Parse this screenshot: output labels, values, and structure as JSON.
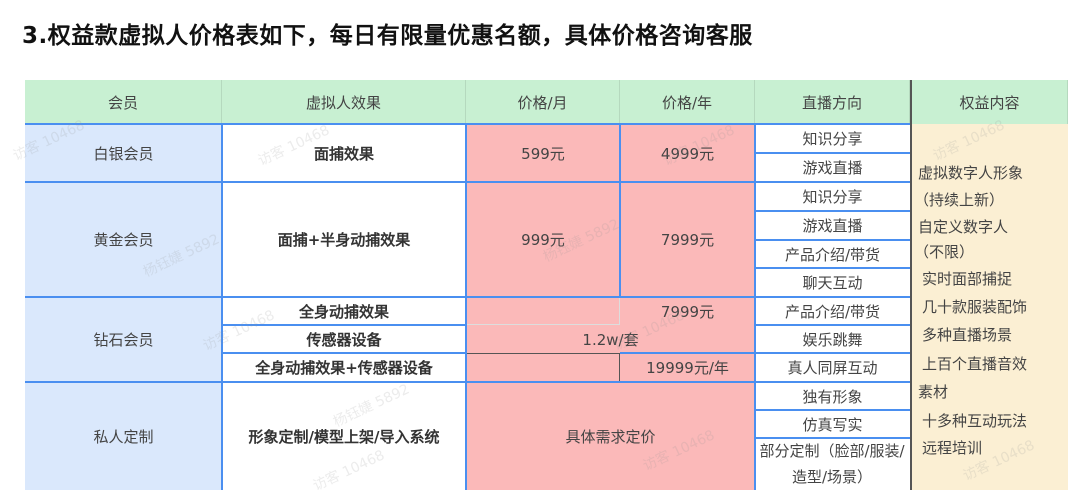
{
  "title": "3.权益款虚拟人价格表如下，每日有限量优惠名额，具体价格咨询客服",
  "headers": [
    "会员",
    "虚拟人效果",
    "价格/月",
    "价格/年",
    "直播方向",
    "权益内容"
  ],
  "rows": {
    "silver": {
      "member": "白银会员",
      "effect": "面捕效果",
      "month": "599元",
      "year": "4999元",
      "directions": [
        "知识分享",
        "游戏直播"
      ]
    },
    "gold": {
      "member": "黄金会员",
      "effect": "面捕+半身动捕效果",
      "month": "999元",
      "year": "7999元",
      "directions": [
        "知识分享",
        "游戏直播",
        "产品介绍/带货",
        "聊天互动"
      ]
    },
    "diamond": {
      "member": "钻石会员",
      "effects": [
        "全身动捕效果",
        "传感器设备",
        "全身动捕效果+传感器设备"
      ],
      "prices": [
        "7999元",
        "1.2w/套",
        "19999元/年"
      ],
      "directions": [
        "产品介绍/带货",
        "娱乐跳舞",
        "真人同屏互动"
      ]
    },
    "custom": {
      "member": "私人定制",
      "effect": "形象定制/模型上架/导入系统",
      "price": "具体需求定价",
      "directions": [
        "独有形象",
        "仿真写实",
        "部分定制（脸部/服装/造型/场景）"
      ]
    }
  },
  "benefits": [
    "虚拟数字人形象",
    "（持续上新）",
    "自定义数字人",
    "（不限）",
    "实时面部捕捉",
    "几十款服装配饰",
    "多种直播场景",
    "上百个直播音效",
    "素材",
    "十多种互动玩法",
    "远程培训"
  ],
  "watermarks": [
    "访客 10468",
    "杨钰婕 5892"
  ],
  "colors": {
    "header": "#c8f0d2",
    "member": "#dae8fc",
    "price": "#fbb9b9",
    "benefit": "#fbefd3",
    "border": "#4a8ff0"
  }
}
